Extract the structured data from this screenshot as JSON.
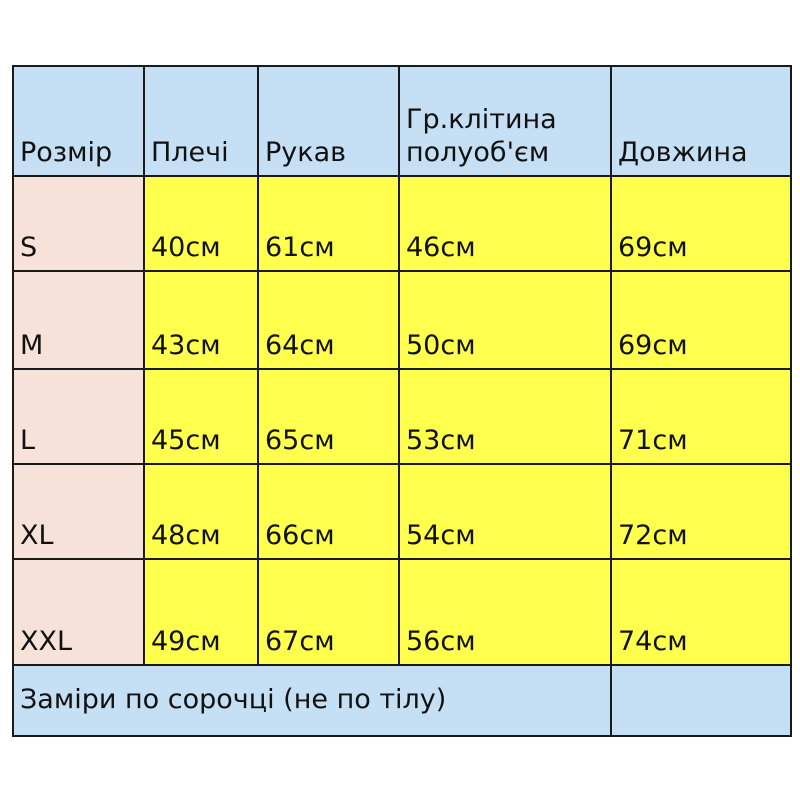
{
  "colors": {
    "header": "#c5e0f4",
    "size_column": "#f6e2d9",
    "values": "#ffff4d",
    "footer": "#c5e0f4"
  },
  "headers": [
    "Розмір",
    "Плечі",
    "Рукав",
    "Гр.клітина полуоб'єм",
    "Довжина"
  ],
  "header_lines": {
    "chest_line1": "Гр.клітина",
    "chest_line2": "полуоб'єм"
  },
  "rows": [
    [
      "S",
      "40см",
      "61см",
      "46см",
      "69см"
    ],
    [
      "M",
      "43см",
      "64см",
      "50см",
      "69см"
    ],
    [
      "L",
      "45см",
      "65см",
      "53см",
      "71см"
    ],
    [
      "XL",
      "48см",
      "66см",
      "54см",
      "72см"
    ],
    [
      "XXL",
      "49см",
      "67см",
      "56см",
      "74см"
    ]
  ],
  "footer": "Заміри по сорочці (не по тілу)"
}
